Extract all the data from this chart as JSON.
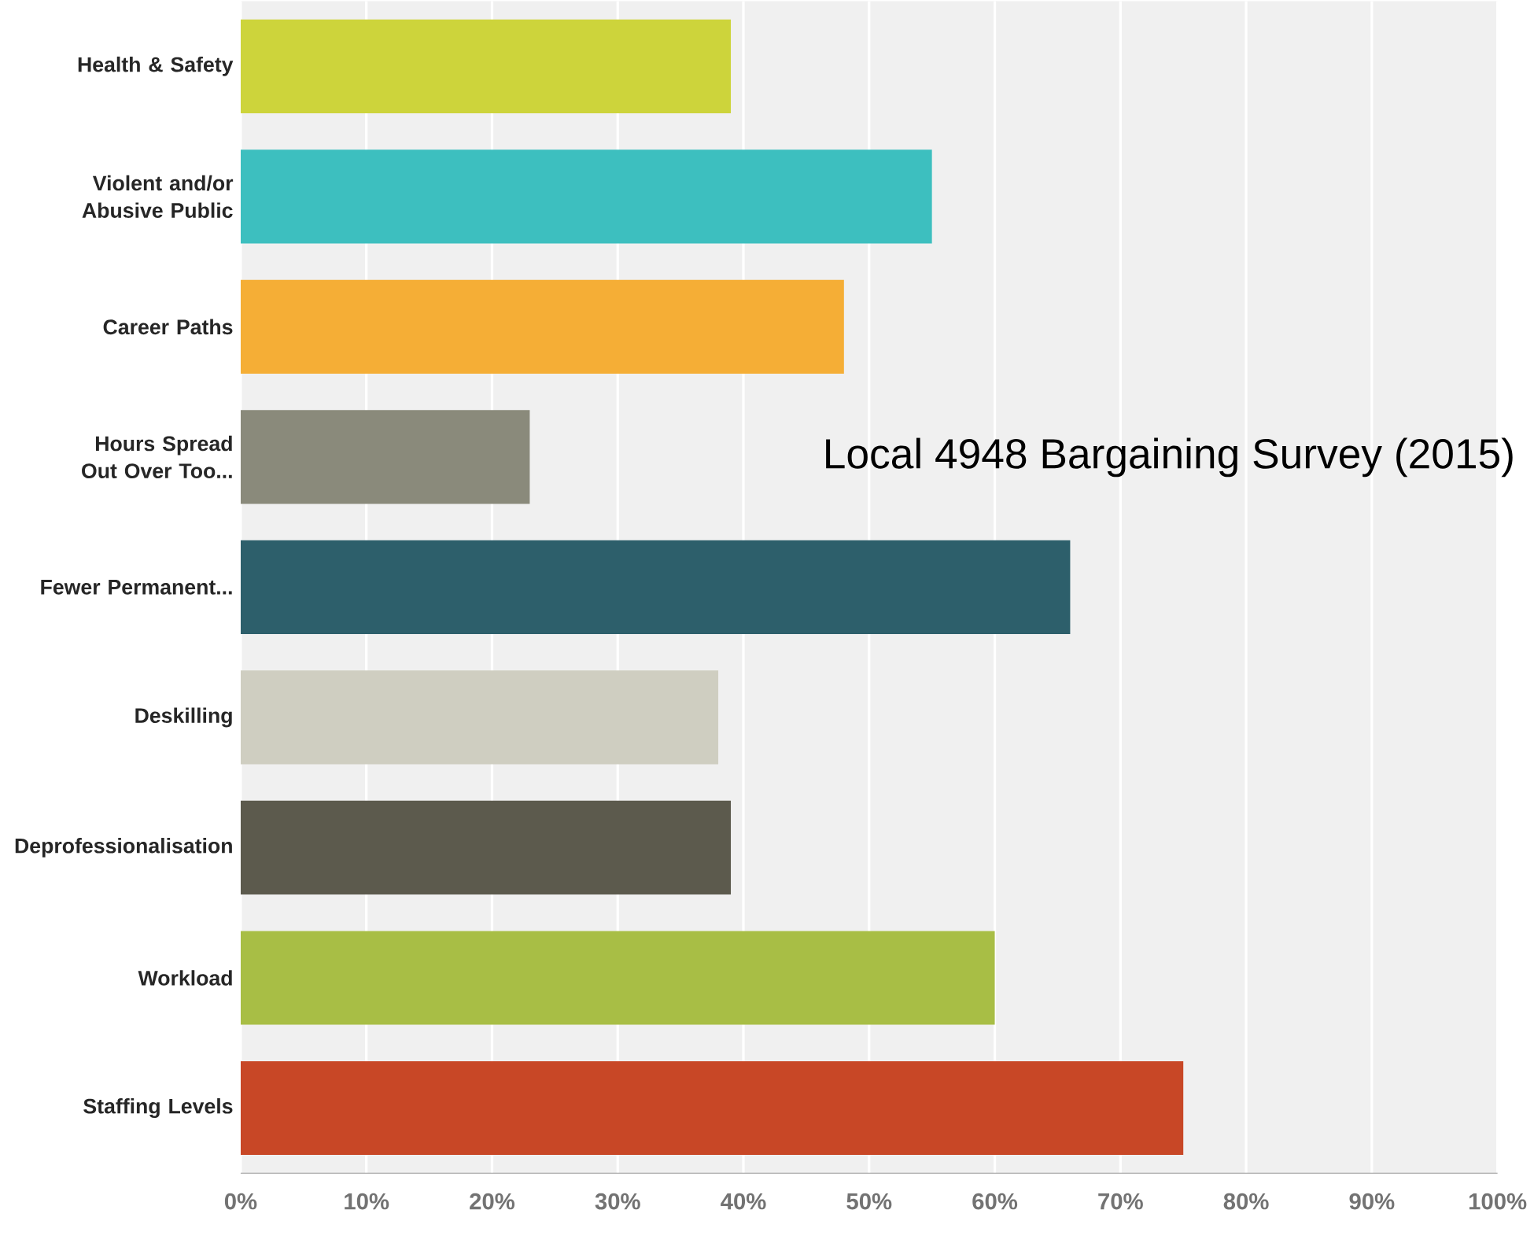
{
  "chart_data": {
    "type": "bar",
    "orientation": "horizontal",
    "title": "Local 4948 Bargaining Survey (2015)",
    "categories": [
      "Health & Safety",
      "Violent and/or Abusive Public",
      "Career Paths",
      "Hours Spread Out Over Too...",
      "Fewer Permanent...",
      "Deskilling",
      "Deprofessionalisation",
      "Workload",
      "Staffing Levels"
    ],
    "values": [
      39,
      55,
      48,
      23,
      66,
      38,
      39,
      60,
      75
    ],
    "colors": [
      "#cdd43b",
      "#3dbfbf",
      "#f5ae36",
      "#8a8a7b",
      "#2d5f6b",
      "#cfcec1",
      "#5c5a4d",
      "#a8be45",
      "#c84726"
    ],
    "xlim": [
      0,
      100
    ],
    "xticks": [
      {
        "value": 0,
        "label": "0%"
      },
      {
        "value": 10,
        "label": "10%"
      },
      {
        "value": 20,
        "label": "20%"
      },
      {
        "value": 30,
        "label": "30%"
      },
      {
        "value": 40,
        "label": "40%"
      },
      {
        "value": 50,
        "label": "50%"
      },
      {
        "value": 60,
        "label": "60%"
      },
      {
        "value": 70,
        "label": "70%"
      },
      {
        "value": 80,
        "label": "80%"
      },
      {
        "value": 90,
        "label": "90%"
      },
      {
        "value": 100,
        "label": "100%"
      }
    ],
    "grid": "x"
  }
}
